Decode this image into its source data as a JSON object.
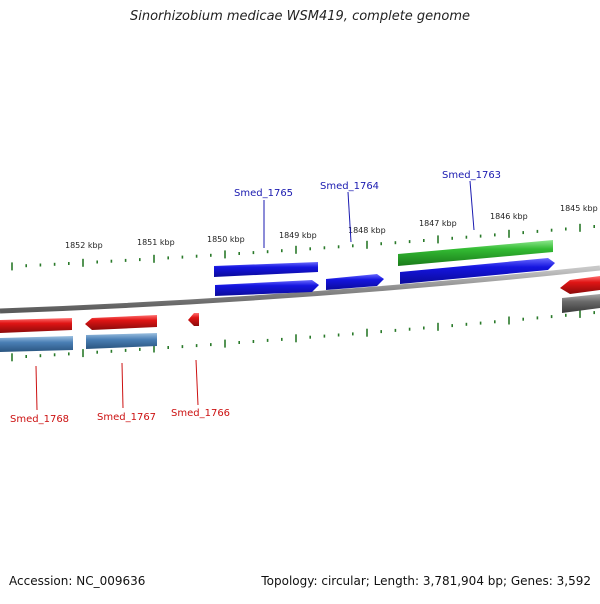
{
  "title": "Sinorhizobium medicae WSM419, complete genome",
  "footer": {
    "accession": "Accession: NC_009636",
    "topology": "Topology: circular; Length: 3,781,904 bp; Genes: 3,592"
  },
  "colors": {
    "forward_label": "#1a1ab0",
    "reverse_label": "#cc1111",
    "forward_gene": "#1515e0",
    "reverse_gene": "#e01515",
    "highlight_gene": "#33bb33",
    "reverse_cds": "#4a7fb5",
    "tick": "#2a7a2a",
    "backbone": "#8a8a8a"
  },
  "scale_labels": [
    "1852 kbp",
    "1851 kbp",
    "1850 kbp",
    "1849 kbp",
    "1848 kbp",
    "1847 kbp",
    "1846 kbp",
    "1845 kbp"
  ],
  "genes": [
    {
      "name": "Smed_1765",
      "strand": "+"
    },
    {
      "name": "Smed_1764",
      "strand": "+"
    },
    {
      "name": "Smed_1763",
      "strand": "+"
    },
    {
      "name": "Smed_1768",
      "strand": "-"
    },
    {
      "name": "Smed_1767",
      "strand": "-"
    },
    {
      "name": "Smed_1766",
      "strand": "-"
    }
  ]
}
